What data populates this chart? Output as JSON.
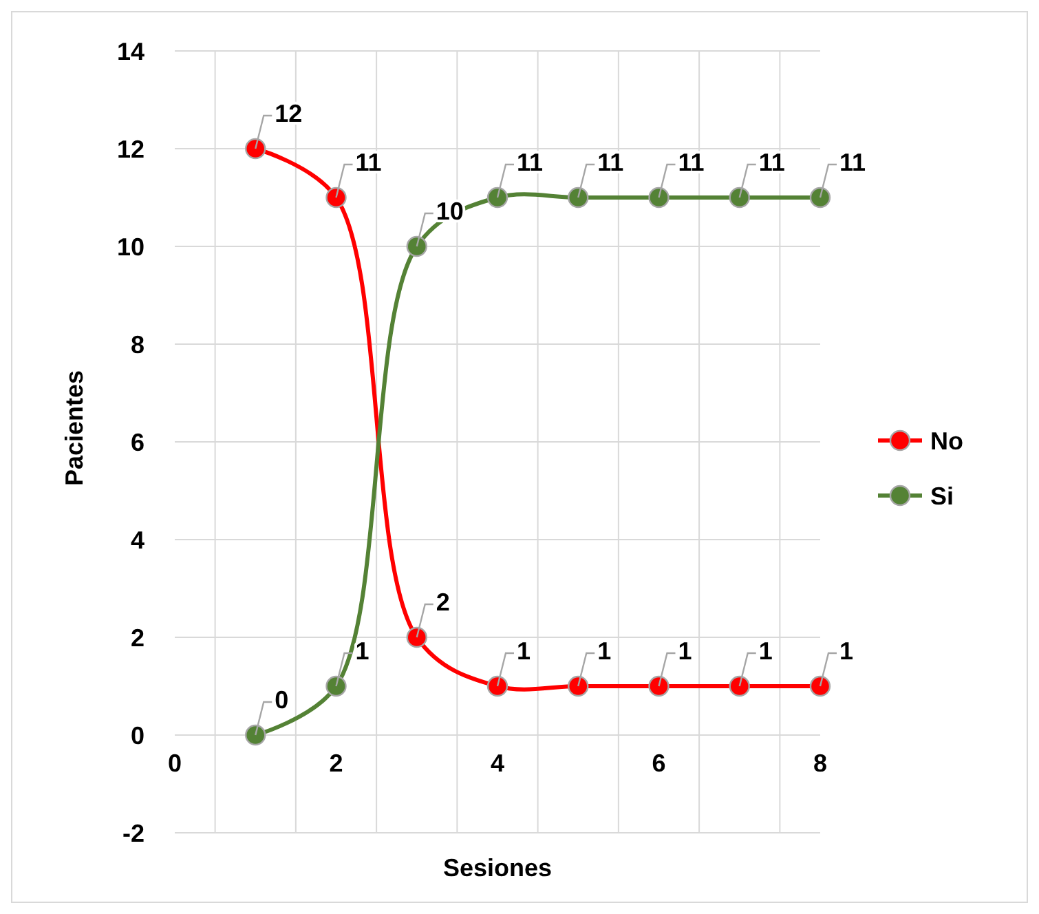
{
  "chart_data": {
    "type": "line",
    "xlabel": "Sesiones",
    "ylabel": "Pacientes",
    "x": [
      1,
      2,
      3,
      4,
      5,
      6,
      7,
      8
    ],
    "series": [
      {
        "name": "No",
        "color": "#ff0000",
        "values": [
          12,
          11,
          2,
          1,
          1,
          1,
          1,
          1
        ]
      },
      {
        "name": "Si",
        "color": "#548235",
        "values": [
          0,
          1,
          10,
          11,
          11,
          11,
          11,
          11
        ]
      }
    ],
    "xlim": [
      0,
      8
    ],
    "xticks": [
      0,
      {
        "value": 0.5,
        "label": null
      },
      {
        "value": 1.5,
        "label": null
      },
      2,
      {
        "value": 2.5,
        "label": null
      },
      {
        "value": 3.5,
        "label": null
      },
      4,
      {
        "value": 4.5,
        "label": null
      },
      {
        "value": 5.5,
        "label": null
      },
      6,
      {
        "value": 6.5,
        "label": null
      },
      {
        "value": 7.5,
        "label": null
      },
      8
    ],
    "ylim": [
      -2,
      14
    ],
    "yticks": [
      -2,
      0,
      2,
      4,
      6,
      8,
      10,
      12,
      14
    ],
    "grid": true,
    "legend": "right",
    "marker": "circle",
    "line_style": "solid",
    "data_labels": true
  }
}
